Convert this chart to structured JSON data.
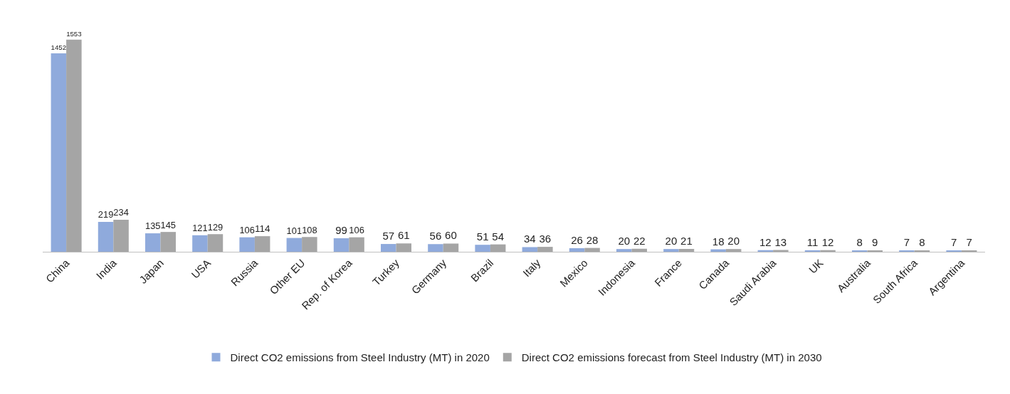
{
  "chart_data": {
    "type": "bar",
    "categories": [
      "China",
      "India",
      "Japan",
      "USA",
      "Russia",
      "Other EU",
      "Rep. of Korea",
      "Turkey",
      "Germany",
      "Brazil",
      "Italy",
      "Mexico",
      "Indonesia",
      "France",
      "Canada",
      "Saudi Arabia",
      "UK",
      "Australia",
      "South Africa",
      "Argentina"
    ],
    "series": [
      {
        "name": "Direct CO2 emissions from Steel Industry (MT) in 2020",
        "color": "#8faadc",
        "values": [
          1452,
          219,
          135,
          121,
          106,
          101,
          99,
          57,
          56,
          51,
          34,
          26,
          20,
          20,
          18,
          12,
          11,
          8,
          7,
          7
        ]
      },
      {
        "name": "Direct CO2 emissions forecast from Steel Industry (MT) in 2030",
        "color": "#a5a5a5",
        "values": [
          1553,
          234,
          145,
          129,
          114,
          108,
          106,
          61,
          60,
          54,
          36,
          28,
          22,
          21,
          20,
          13,
          12,
          9,
          8,
          7
        ]
      }
    ],
    "data_labels": true,
    "grid": false,
    "legend": "bottom"
  }
}
